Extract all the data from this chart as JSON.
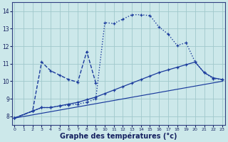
{
  "background_color": "#cce8ea",
  "grid_color": "#a0c8cc",
  "line_color": "#1a3a9c",
  "xlabel": "Graphe des températures (°c)",
  "ylim": [
    7.5,
    14.5
  ],
  "xlim": [
    -0.3,
    23.3
  ],
  "yticks": [
    8,
    9,
    10,
    11,
    12,
    13,
    14
  ],
  "xticks": [
    0,
    1,
    2,
    3,
    4,
    5,
    6,
    7,
    8,
    9,
    10,
    11,
    12,
    13,
    14,
    15,
    16,
    17,
    18,
    19,
    20,
    21,
    22,
    23
  ],
  "curve_main": {
    "x": [
      0,
      2,
      3,
      4,
      5,
      6,
      7,
      8,
      9,
      10,
      11,
      12,
      13,
      14,
      15,
      16,
      17,
      18,
      19,
      20,
      21,
      22,
      23
    ],
    "y": [
      7.9,
      8.3,
      8.5,
      8.5,
      8.6,
      8.65,
      8.7,
      8.8,
      9.0,
      13.35,
      13.3,
      13.55,
      13.8,
      13.8,
      13.75,
      13.1,
      12.7,
      12.05,
      12.2,
      11.1,
      10.5,
      10.15,
      10.1
    ]
  },
  "curve_spike": {
    "x": [
      0,
      2,
      3,
      4,
      5,
      6,
      7,
      8,
      9
    ],
    "y": [
      7.9,
      8.3,
      11.1,
      10.6,
      10.35,
      10.1,
      9.95,
      11.7,
      9.9
    ]
  },
  "curve_mid": {
    "x": [
      0,
      2,
      3,
      4,
      5,
      6,
      7,
      8,
      9,
      10,
      11,
      12,
      13,
      14,
      15,
      16,
      17,
      18,
      19,
      20,
      21,
      22,
      23
    ],
    "y": [
      7.9,
      8.3,
      8.5,
      8.5,
      8.6,
      8.7,
      8.8,
      8.95,
      9.1,
      9.3,
      9.5,
      9.7,
      9.9,
      10.1,
      10.3,
      10.5,
      10.65,
      10.8,
      10.95,
      11.1,
      10.5,
      10.2,
      10.1
    ]
  },
  "curve_base": {
    "x": [
      0,
      23
    ],
    "y": [
      7.9,
      10.0
    ]
  }
}
